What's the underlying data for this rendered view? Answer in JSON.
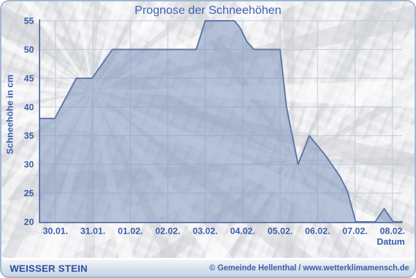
{
  "title": "Prognose der Schneehöhen",
  "chart_data": {
    "type": "area",
    "title": "Prognose der Schneehöhen",
    "xlabel": "Datum",
    "ylabel": "Schneehöhe in cm",
    "ylim": [
      20,
      55
    ],
    "y_ticks": [
      20,
      25,
      30,
      35,
      40,
      45,
      50,
      55
    ],
    "x_tick_labels": [
      "30.01.",
      "31.01.",
      "01.02.",
      "02.02.",
      "03.02.",
      "04.02.",
      "05.02.",
      "06.02.",
      "07.02.",
      "08.02."
    ],
    "grid": true,
    "legend": false,
    "series": [
      {
        "name": "Schneehöhe",
        "unit": "cm",
        "x_unit": "days_since_30.01",
        "points": [
          [
            -0.43,
            38
          ],
          [
            -0.02,
            38
          ],
          [
            0.56,
            45
          ],
          [
            0.98,
            45
          ],
          [
            1.52,
            50
          ],
          [
            3.76,
            50
          ],
          [
            4.0,
            55
          ],
          [
            4.78,
            55
          ],
          [
            4.93,
            53.8
          ],
          [
            5.11,
            51.4
          ],
          [
            5.3,
            50
          ],
          [
            6.0,
            50
          ],
          [
            6.17,
            40
          ],
          [
            6.48,
            30
          ],
          [
            6.78,
            35
          ],
          [
            7.22,
            31.5
          ],
          [
            7.59,
            28
          ],
          [
            7.8,
            25.3
          ],
          [
            8.02,
            20
          ],
          [
            8.54,
            20
          ],
          [
            8.78,
            22.3
          ],
          [
            9.02,
            20
          ],
          [
            9.26,
            20
          ]
        ]
      }
    ],
    "colors": {
      "area_fill": "#7892bc",
      "area_fill_opacity": 0.52,
      "line": "#5b76a6",
      "grid": "#bcc9dd",
      "axis": "#6079aa",
      "label": "#3b5ea9",
      "title": "#3f63b0"
    }
  },
  "footer": {
    "left": "WEISSER STEIN",
    "right": "© Gemeinde Hellenthal / www.wetterklimamensch.de"
  }
}
